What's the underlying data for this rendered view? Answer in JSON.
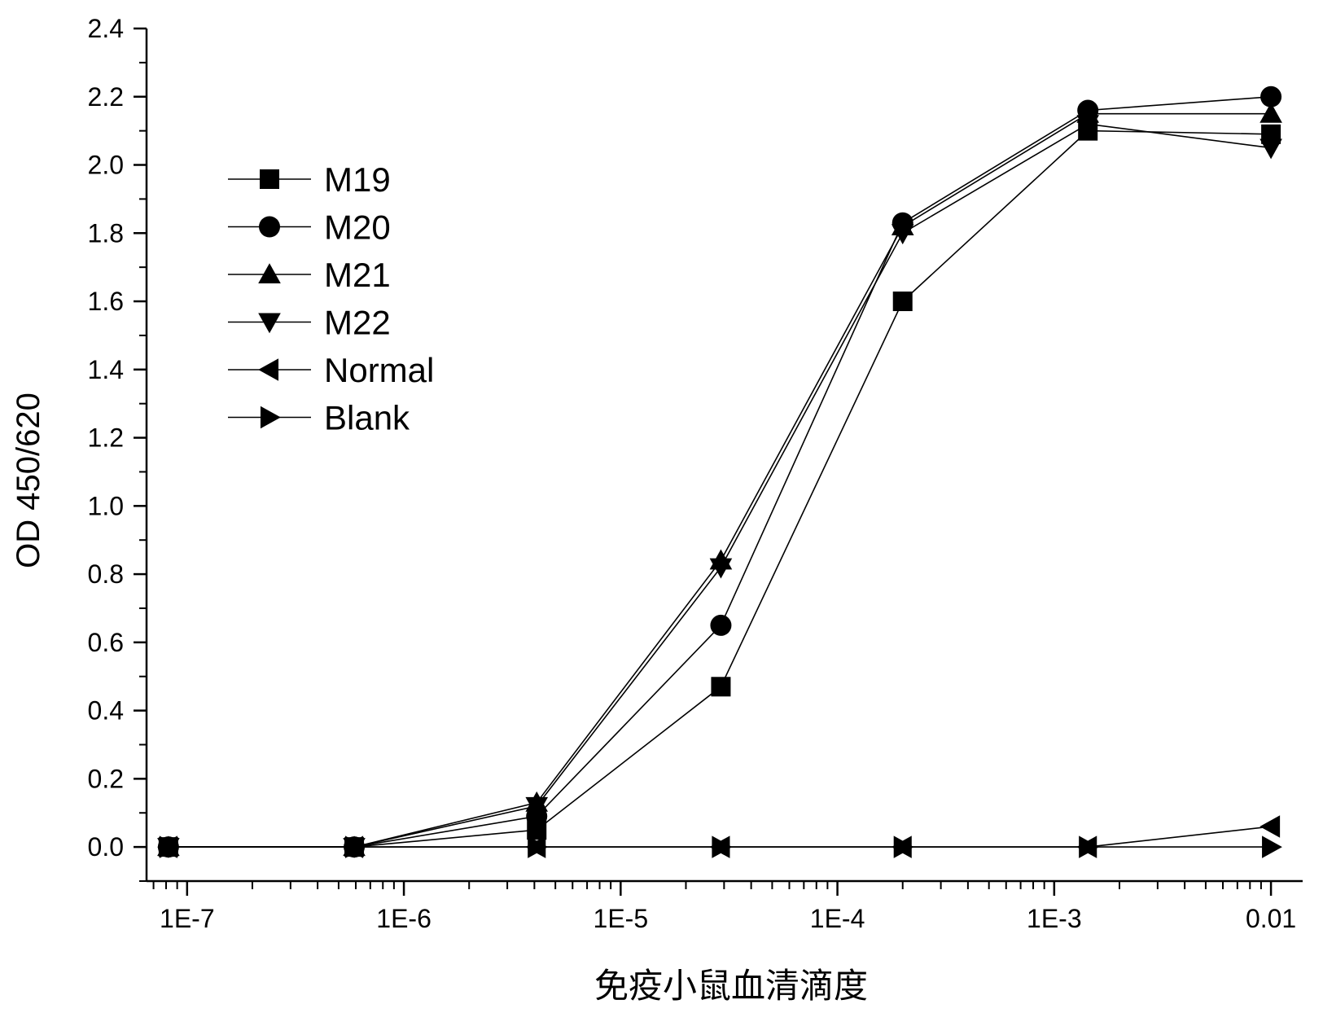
{
  "chart_data": {
    "type": "line",
    "title": "",
    "xlabel": "免疫小鼠血清滴度",
    "ylabel": "OD 450/620",
    "x_scale": "log",
    "xlim": [
      6.5e-08,
      0.014
    ],
    "ylim": [
      -0.1,
      2.4
    ],
    "x_ticks": [
      1e-07,
      1e-06,
      1e-05,
      0.0001,
      0.001,
      0.01
    ],
    "x_tick_labels": [
      "1E-7",
      "1E-6",
      "1E-5",
      "1E-4",
      "1E-3",
      "0.01"
    ],
    "y_ticks": [
      0.0,
      0.2,
      0.4,
      0.6,
      0.8,
      1.0,
      1.2,
      1.4,
      1.6,
      1.8,
      2.0,
      2.2,
      2.4
    ],
    "y_tick_labels": [
      "0.0",
      "0.2",
      "0.4",
      "0.6",
      "0.8",
      "1.0",
      "1.2",
      "1.4",
      "1.6",
      "1.8",
      "2.0",
      "2.2",
      "2.4"
    ],
    "x": [
      8.2e-08,
      5.9e-07,
      4.1e-06,
      2.9e-05,
      0.0002,
      0.00143,
      0.01
    ],
    "series": [
      {
        "name": "M19",
        "marker": "square",
        "values": [
          0.0,
          0.0,
          0.05,
          0.47,
          1.6,
          2.1,
          2.09
        ]
      },
      {
        "name": "M20",
        "marker": "circle",
        "values": [
          0.0,
          0.0,
          0.09,
          0.65,
          1.83,
          2.16,
          2.2
        ]
      },
      {
        "name": "M21",
        "marker": "triangle-up",
        "values": [
          0.0,
          0.0,
          0.13,
          0.84,
          1.82,
          2.15,
          2.15
        ]
      },
      {
        "name": "M22",
        "marker": "triangle-down",
        "values": [
          0.0,
          0.0,
          0.12,
          0.82,
          1.8,
          2.12,
          2.05
        ]
      },
      {
        "name": "Normal",
        "marker": "triangle-left",
        "values": [
          0.0,
          0.0,
          0.0,
          0.0,
          0.0,
          0.0,
          0.06
        ]
      },
      {
        "name": "Blank",
        "marker": "triangle-right",
        "values": [
          0.0,
          0.0,
          0.0,
          0.0,
          0.0,
          0.0,
          0.0
        ]
      }
    ],
    "grid": false,
    "legend_position": "upper-left",
    "colors": {
      "line": "#000000",
      "marker": "#000000",
      "background": "#ffffff"
    }
  }
}
